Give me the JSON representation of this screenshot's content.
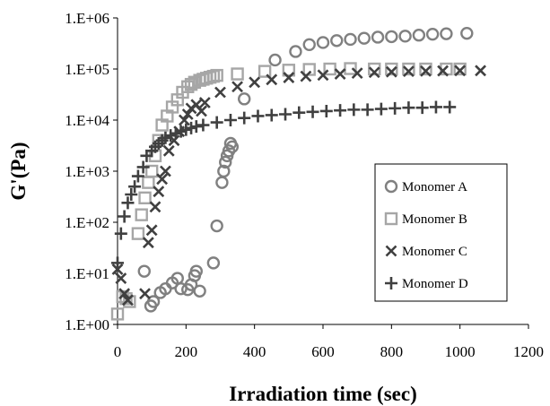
{
  "chart_data": {
    "type": "scatter",
    "title": "",
    "xlabel": "Irradiation time (sec)",
    "ylabel": "G'(Pa)",
    "xlim": [
      0,
      1200
    ],
    "ylim": [
      1,
      1000000
    ],
    "yscale": "log",
    "grid": false,
    "legend_position": "right",
    "xticks": [
      "0",
      "200",
      "400",
      "600",
      "800",
      "1000",
      "1200"
    ],
    "yticks": [
      "1.E+00",
      "1.E+01",
      "1.E+02",
      "1.E+03",
      "1.E+04",
      "1.E+05",
      "1.E+06"
    ],
    "series": [
      {
        "name": "Monomer A",
        "marker": "circle",
        "color": "#808080",
        "points": [
          [
            78,
            11
          ],
          [
            97,
            2.3
          ],
          [
            105,
            2.8
          ],
          [
            125,
            4.2
          ],
          [
            140,
            5
          ],
          [
            160,
            6.5
          ],
          [
            175,
            8
          ],
          [
            185,
            5
          ],
          [
            205,
            4.8
          ],
          [
            215,
            6
          ],
          [
            225,
            9
          ],
          [
            230,
            11
          ],
          [
            240,
            4.5
          ],
          [
            280,
            16
          ],
          [
            290,
            85
          ],
          [
            305,
            600
          ],
          [
            310,
            1000
          ],
          [
            315,
            1500
          ],
          [
            320,
            2000
          ],
          [
            325,
            2500
          ],
          [
            330,
            3500
          ],
          [
            335,
            3000
          ],
          [
            370,
            26000
          ],
          [
            460,
            150000
          ],
          [
            520,
            220000
          ],
          [
            560,
            300000
          ],
          [
            600,
            330000
          ],
          [
            640,
            360000
          ],
          [
            680,
            380000
          ],
          [
            720,
            400000
          ],
          [
            760,
            420000
          ],
          [
            800,
            430000
          ],
          [
            840,
            440000
          ],
          [
            880,
            460000
          ],
          [
            920,
            480000
          ],
          [
            960,
            490000
          ],
          [
            1020,
            500000
          ]
        ]
      },
      {
        "name": "Monomer B",
        "marker": "square",
        "color": "#a6a6a6",
        "points": [
          [
            0,
            1.6
          ],
          [
            15,
            3.5
          ],
          [
            25,
            3.2
          ],
          [
            35,
            2.8
          ],
          [
            60,
            60
          ],
          [
            70,
            140
          ],
          [
            80,
            300
          ],
          [
            90,
            600
          ],
          [
            100,
            1000
          ],
          [
            110,
            2000
          ],
          [
            120,
            4000
          ],
          [
            130,
            8000
          ],
          [
            145,
            12000
          ],
          [
            160,
            18000
          ],
          [
            175,
            25000
          ],
          [
            190,
            35000
          ],
          [
            205,
            45000
          ],
          [
            215,
            50000
          ],
          [
            225,
            55000
          ],
          [
            240,
            60000
          ],
          [
            250,
            63000
          ],
          [
            260,
            66000
          ],
          [
            270,
            69000
          ],
          [
            280,
            72000
          ],
          [
            290,
            75000
          ],
          [
            350,
            80000
          ],
          [
            430,
            90000
          ],
          [
            500,
            95000
          ],
          [
            560,
            98000
          ],
          [
            620,
            100000
          ],
          [
            680,
            102000
          ],
          [
            750,
            100000
          ],
          [
            800,
            100000
          ],
          [
            850,
            100000
          ],
          [
            900,
            100000
          ],
          [
            960,
            100000
          ],
          [
            1000,
            100000
          ]
        ]
      },
      {
        "name": "Monomer C",
        "marker": "x",
        "color": "#404040",
        "points": [
          [
            0,
            12
          ],
          [
            10,
            8
          ],
          [
            20,
            4
          ],
          [
            30,
            3
          ],
          [
            80,
            4
          ],
          [
            90,
            40
          ],
          [
            100,
            70
          ],
          [
            110,
            200
          ],
          [
            120,
            400
          ],
          [
            130,
            700
          ],
          [
            140,
            1000
          ],
          [
            150,
            2500
          ],
          [
            165,
            4000
          ],
          [
            180,
            6000
          ],
          [
            195,
            10000
          ],
          [
            205,
            13000
          ],
          [
            215,
            17000
          ],
          [
            230,
            20000
          ],
          [
            245,
            15000
          ],
          [
            255,
            22000
          ],
          [
            300,
            35000
          ],
          [
            350,
            45000
          ],
          [
            400,
            55000
          ],
          [
            450,
            62000
          ],
          [
            500,
            68000
          ],
          [
            550,
            72000
          ],
          [
            600,
            76000
          ],
          [
            650,
            80000
          ],
          [
            700,
            83000
          ],
          [
            750,
            86000
          ],
          [
            800,
            88000
          ],
          [
            850,
            90000
          ],
          [
            900,
            91000
          ],
          [
            950,
            92000
          ],
          [
            1000,
            93000
          ],
          [
            1060,
            93000
          ]
        ]
      },
      {
        "name": "Monomer D",
        "marker": "plus",
        "color": "#404040",
        "points": [
          [
            0,
            16
          ],
          [
            10,
            60
          ],
          [
            20,
            130
          ],
          [
            30,
            240
          ],
          [
            40,
            350
          ],
          [
            50,
            500
          ],
          [
            60,
            800
          ],
          [
            75,
            1200
          ],
          [
            85,
            2000
          ],
          [
            100,
            2500
          ],
          [
            110,
            3000
          ],
          [
            120,
            3500
          ],
          [
            130,
            4000
          ],
          [
            140,
            4500
          ],
          [
            155,
            5000
          ],
          [
            170,
            5500
          ],
          [
            185,
            6000
          ],
          [
            200,
            6500
          ],
          [
            215,
            7000
          ],
          [
            230,
            7500
          ],
          [
            250,
            8000
          ],
          [
            290,
            9000
          ],
          [
            330,
            10000
          ],
          [
            370,
            11000
          ],
          [
            410,
            12000
          ],
          [
            450,
            12500
          ],
          [
            490,
            13000
          ],
          [
            530,
            14000
          ],
          [
            570,
            14500
          ],
          [
            610,
            15000
          ],
          [
            650,
            15500
          ],
          [
            690,
            16000
          ],
          [
            730,
            16000
          ],
          [
            770,
            16500
          ],
          [
            810,
            17000
          ],
          [
            850,
            17500
          ],
          [
            890,
            17500
          ],
          [
            930,
            18000
          ],
          [
            970,
            18000
          ]
        ]
      }
    ]
  }
}
